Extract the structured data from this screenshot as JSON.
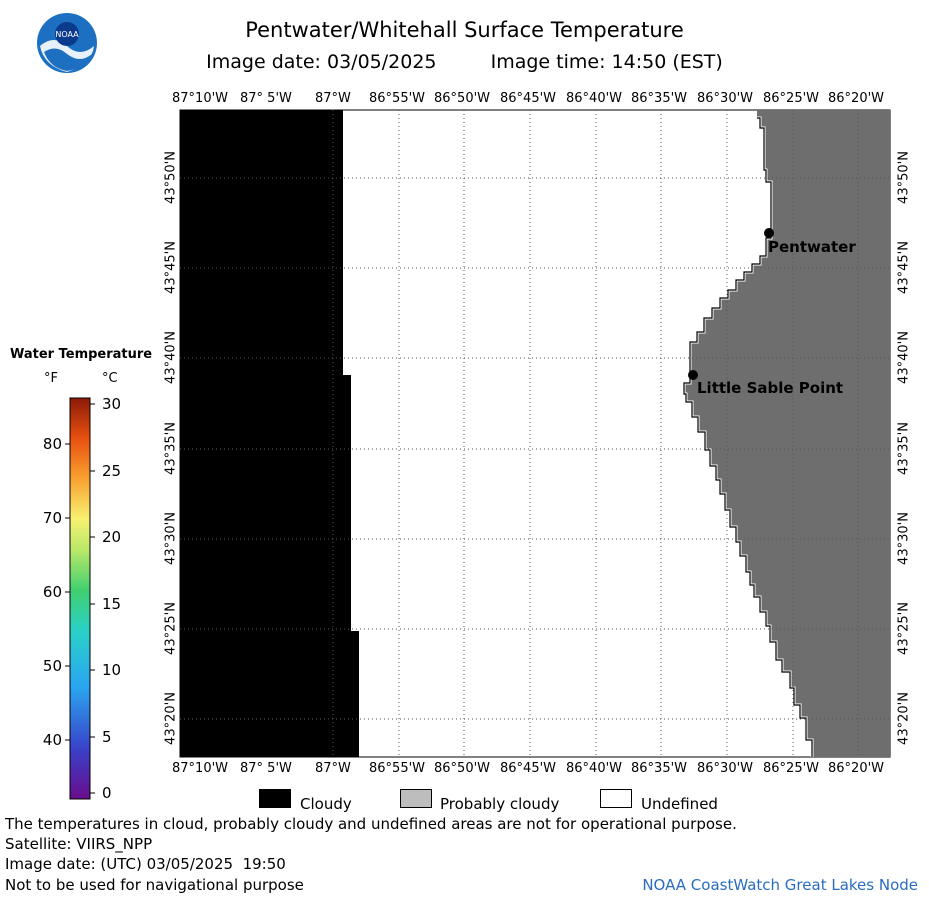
{
  "title": "Pentwater/Whitehall Surface Temperature",
  "image_date_label": "Image date: 03/05/2025",
  "image_time_label": "Image time: 14:50 (EST)",
  "logo_text": "NOAA",
  "legend": {
    "title": "Water Temperature",
    "unit_f": "°F",
    "unit_c": "°C",
    "f_ticks": [
      "80",
      "70",
      "60",
      "50",
      "40"
    ],
    "c_ticks": [
      "30",
      "25",
      "20",
      "15",
      "10",
      "5",
      "0"
    ]
  },
  "longitude_ticks": [
    "87°10'W",
    "87° 5'W",
    "87°W",
    "86°55'W",
    "86°50'W",
    "86°45'W",
    "86°40'W",
    "86°35'W",
    "86°30'W",
    "86°25'W",
    "86°20'W"
  ],
  "latitude_ticks": [
    "43°50'N",
    "43°45'N",
    "43°40'N",
    "43°35'N",
    "43°30'N",
    "43°25'N",
    "43°20'N"
  ],
  "places": {
    "pentwater": "Pentwater",
    "little_sable_point": "Little Sable Point"
  },
  "key": {
    "cloudy": "Cloudy",
    "probably_cloudy": "Probably cloudy",
    "undefined": "Undefined"
  },
  "footer": {
    "disclaimer": "The temperatures in cloud, probably cloudy and undefined areas are not for operational purpose.",
    "satellite": "Satellite: VIIRS_NPP",
    "utc_date": "Image date: (UTC) 03/05/2025  19:50",
    "nav_warning": "Not to be used for navigational purpose",
    "credit": "NOAA CoastWatch Great Lakes Node"
  },
  "colors": {
    "cloud": "#000000",
    "land": "#6e6e6e",
    "grid": "#555555",
    "credit": "#2a6cc0"
  }
}
